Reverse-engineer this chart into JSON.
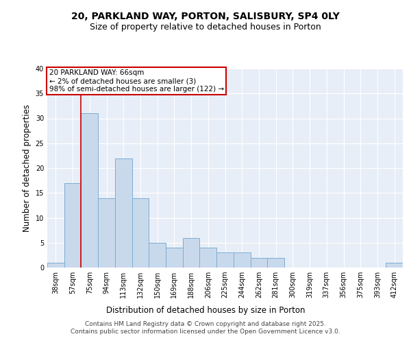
{
  "title_line1": "20, PARKLAND WAY, PORTON, SALISBURY, SP4 0LY",
  "title_line2": "Size of property relative to detached houses in Porton",
  "xlabel": "Distribution of detached houses by size in Porton",
  "ylabel": "Number of detached properties",
  "categories": [
    "38sqm",
    "57sqm",
    "75sqm",
    "94sqm",
    "113sqm",
    "132sqm",
    "150sqm",
    "169sqm",
    "188sqm",
    "206sqm",
    "225sqm",
    "244sqm",
    "262sqm",
    "281sqm",
    "300sqm",
    "319sqm",
    "337sqm",
    "356sqm",
    "375sqm",
    "393sqm",
    "412sqm"
  ],
  "values": [
    1,
    17,
    31,
    14,
    22,
    14,
    5,
    4,
    6,
    4,
    3,
    3,
    2,
    2,
    0,
    0,
    0,
    0,
    0,
    0,
    1
  ],
  "bar_color": "#c9d9ec",
  "bar_edge_color": "#7aadd4",
  "background_color": "#e8eef7",
  "grid_color": "#ffffff",
  "annotation_text": "20 PARKLAND WAY: 66sqm\n← 2% of detached houses are smaller (3)\n98% of semi-detached houses are larger (122) →",
  "annotation_box_color": "#ffffff",
  "annotation_box_edge": "#cc0000",
  "red_line_x": 1.5,
  "ylim": [
    0,
    40
  ],
  "yticks": [
    0,
    5,
    10,
    15,
    20,
    25,
    30,
    35,
    40
  ],
  "footer_text": "Contains HM Land Registry data © Crown copyright and database right 2025.\nContains public sector information licensed under the Open Government Licence v3.0.",
  "title_fontsize": 10,
  "subtitle_fontsize": 9,
  "label_fontsize": 8.5,
  "tick_fontsize": 7,
  "footer_fontsize": 6.5
}
